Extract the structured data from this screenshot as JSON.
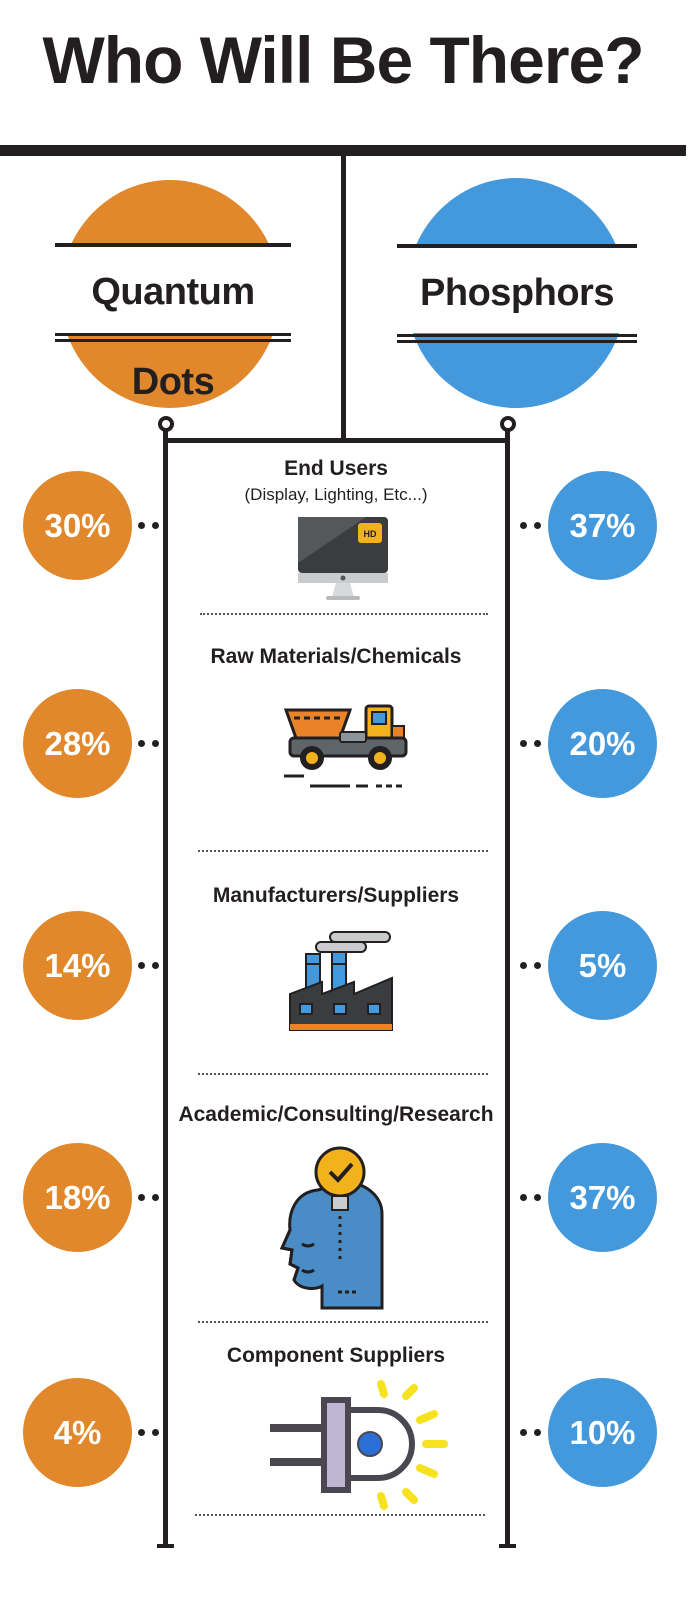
{
  "title": "Who Will Be There?",
  "columns": {
    "left": {
      "label": "Quantum Dots",
      "color": "#e0882b"
    },
    "right": {
      "label": "Phosphors",
      "color": "#4399db"
    }
  },
  "rows": [
    {
      "category": "End Users",
      "subtitle": "(Display, Lighting, Etc...)",
      "icon": "monitor-hd-icon",
      "left_pct": "30%",
      "right_pct": "37%"
    },
    {
      "category": "Raw Materials/Chemicals",
      "icon": "dump-truck-icon",
      "left_pct": "28%",
      "right_pct": "20%"
    },
    {
      "category": "Manufacturers/Suppliers",
      "icon": "factory-icon",
      "left_pct": "14%",
      "right_pct": "5%"
    },
    {
      "category": "Academic/Consulting/Research",
      "icon": "head-lightbulb-icon",
      "left_pct": "18%",
      "right_pct": "37%"
    },
    {
      "category": "Component Suppliers",
      "icon": "led-diode-icon",
      "left_pct": "4%",
      "right_pct": "10%"
    }
  ]
}
